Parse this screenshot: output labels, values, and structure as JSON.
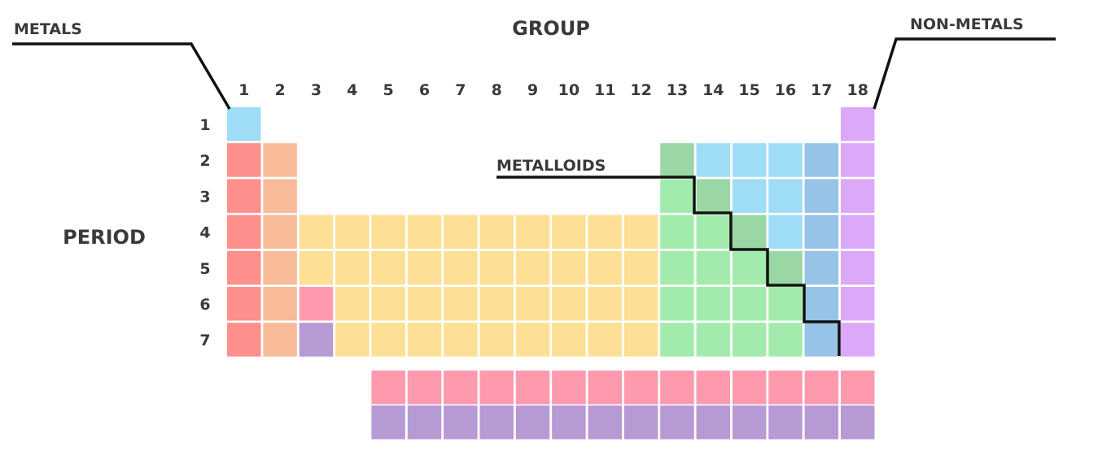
{
  "labels": {
    "group": "GROUP",
    "period": "PERIOD",
    "metals": "METALS",
    "non_metals": "NON-METALS",
    "metalloids": "METALLOIDS"
  },
  "group_numbers": [
    "1",
    "2",
    "3",
    "4",
    "5",
    "6",
    "7",
    "8",
    "9",
    "10",
    "11",
    "12",
    "13",
    "14",
    "15",
    "16",
    "17",
    "18"
  ],
  "period_numbers": [
    "1",
    "2",
    "3",
    "4",
    "5",
    "6",
    "7"
  ],
  "colors": {
    "hydrogen": "#9fdcf6",
    "alkali": "#fe8f8c",
    "alkaline_earth": "#f8bb99",
    "transition": "#fde096",
    "lanthanide": "#fe9aad",
    "actinide": "#b69ad4",
    "metalloid": "#9ad7a4",
    "post_transition": "#a2ebac",
    "nonmetal": "#9fdcf6",
    "halogen": "#97c3e6",
    "noble_gas": "#dba9f7",
    "line": "#111111"
  }
}
